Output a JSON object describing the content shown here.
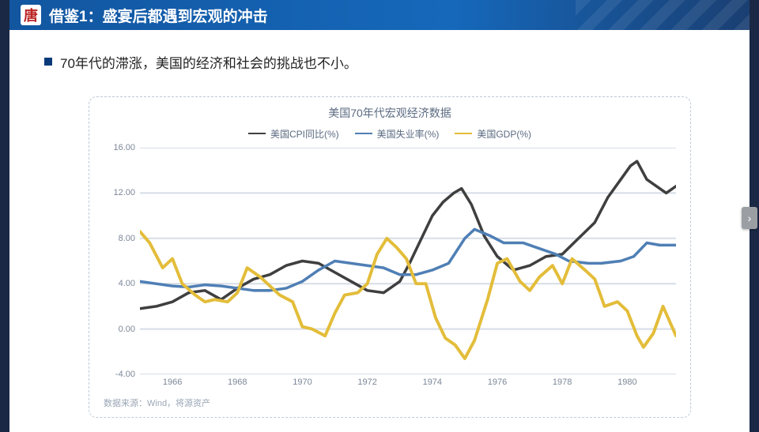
{
  "header": {
    "logo_char": "唐",
    "title": "借鉴1：盛宴后都遇到宏观的冲击",
    "title_fontsize": 19,
    "bar_gradient": [
      "#1256a0",
      "#1668bb",
      "#1a3f72"
    ]
  },
  "bullet": {
    "text": "70年代的滞涨，美国的经济和社会的挑战也不小。",
    "square_color": "#0b3a7a",
    "fontsize": 17
  },
  "chart": {
    "type": "line",
    "title": "美国70年代宏观经济数据",
    "title_color": "#5b6b82",
    "title_fontsize": 14,
    "border_color": "#bfc9d6",
    "background_color": "#ffffff",
    "source": "数据来源：Wind，将源资产",
    "x": {
      "ticks": [
        1966,
        1968,
        1970,
        1972,
        1974,
        1976,
        1978,
        1980
      ],
      "lim": [
        1965,
        1981.5
      ],
      "label_color": "#7b8798",
      "label_fontsize": 11
    },
    "y": {
      "ticks": [
        -4.0,
        0.0,
        4.0,
        8.0,
        12.0,
        16.0
      ],
      "lim": [
        -4,
        16
      ],
      "grid_color": "#d7dde6",
      "grid_width": 1,
      "label_color": "#7b8798",
      "label_fontsize": 11,
      "label_format": "0.00"
    },
    "legend": {
      "position": "top",
      "fontsize": 12,
      "items": [
        {
          "label": "美国CPI同比(%)",
          "color": "#3f3f3f"
        },
        {
          "label": "美国失业率(%)",
          "color": "#4f7fb5"
        },
        {
          "label": "美国GDP(%)",
          "color": "#e3bd3a"
        }
      ]
    },
    "series": [
      {
        "name": "cpi",
        "color": "#3f3f3f",
        "width": 1.6,
        "points": [
          [
            1965.0,
            1.8
          ],
          [
            1965.5,
            2.0
          ],
          [
            1966.0,
            2.4
          ],
          [
            1966.5,
            3.2
          ],
          [
            1967.0,
            3.4
          ],
          [
            1967.5,
            2.6
          ],
          [
            1968.0,
            3.6
          ],
          [
            1968.5,
            4.4
          ],
          [
            1969.0,
            4.8
          ],
          [
            1969.5,
            5.6
          ],
          [
            1970.0,
            6.0
          ],
          [
            1970.5,
            5.8
          ],
          [
            1971.0,
            5.0
          ],
          [
            1971.5,
            4.2
          ],
          [
            1972.0,
            3.4
          ],
          [
            1972.5,
            3.2
          ],
          [
            1973.0,
            4.2
          ],
          [
            1973.3,
            5.8
          ],
          [
            1973.6,
            7.6
          ],
          [
            1974.0,
            10.0
          ],
          [
            1974.33,
            11.2
          ],
          [
            1974.66,
            12.0
          ],
          [
            1974.9,
            12.4
          ],
          [
            1975.2,
            11.0
          ],
          [
            1975.6,
            8.2
          ],
          [
            1976.0,
            6.4
          ],
          [
            1976.5,
            5.2
          ],
          [
            1977.0,
            5.6
          ],
          [
            1977.5,
            6.4
          ],
          [
            1978.0,
            6.6
          ],
          [
            1978.5,
            8.0
          ],
          [
            1979.0,
            9.4
          ],
          [
            1979.4,
            11.6
          ],
          [
            1979.8,
            13.2
          ],
          [
            1980.1,
            14.4
          ],
          [
            1980.3,
            14.8
          ],
          [
            1980.6,
            13.2
          ],
          [
            1980.9,
            12.6
          ],
          [
            1981.2,
            12.0
          ],
          [
            1981.5,
            12.6
          ]
        ]
      },
      {
        "name": "unemployment",
        "color": "#4f7fb5",
        "width": 1.6,
        "points": [
          [
            1965.0,
            4.2
          ],
          [
            1965.5,
            4.0
          ],
          [
            1966.0,
            3.8
          ],
          [
            1966.5,
            3.7
          ],
          [
            1967.0,
            3.9
          ],
          [
            1967.5,
            3.8
          ],
          [
            1968.0,
            3.6
          ],
          [
            1968.5,
            3.4
          ],
          [
            1969.0,
            3.4
          ],
          [
            1969.5,
            3.6
          ],
          [
            1970.0,
            4.2
          ],
          [
            1970.5,
            5.2
          ],
          [
            1971.0,
            6.0
          ],
          [
            1971.5,
            5.8
          ],
          [
            1972.0,
            5.6
          ],
          [
            1972.5,
            5.4
          ],
          [
            1973.0,
            4.8
          ],
          [
            1973.5,
            4.8
          ],
          [
            1974.0,
            5.2
          ],
          [
            1974.5,
            5.8
          ],
          [
            1975.0,
            8.0
          ],
          [
            1975.3,
            8.8
          ],
          [
            1975.8,
            8.2
          ],
          [
            1976.2,
            7.6
          ],
          [
            1976.8,
            7.6
          ],
          [
            1977.2,
            7.2
          ],
          [
            1977.8,
            6.6
          ],
          [
            1978.2,
            6.0
          ],
          [
            1978.8,
            5.8
          ],
          [
            1979.2,
            5.8
          ],
          [
            1979.8,
            6.0
          ],
          [
            1980.2,
            6.4
          ],
          [
            1980.6,
            7.6
          ],
          [
            1981.0,
            7.4
          ],
          [
            1981.5,
            7.4
          ]
        ]
      },
      {
        "name": "gdp",
        "color": "#e3bd3a",
        "width": 1.8,
        "points": [
          [
            1965.0,
            8.6
          ],
          [
            1965.3,
            7.6
          ],
          [
            1965.7,
            5.4
          ],
          [
            1966.0,
            6.2
          ],
          [
            1966.3,
            4.0
          ],
          [
            1966.7,
            3.0
          ],
          [
            1967.0,
            2.4
          ],
          [
            1967.3,
            2.6
          ],
          [
            1967.7,
            2.4
          ],
          [
            1968.0,
            3.2
          ],
          [
            1968.3,
            5.4
          ],
          [
            1968.7,
            4.6
          ],
          [
            1969.0,
            3.8
          ],
          [
            1969.3,
            3.0
          ],
          [
            1969.7,
            2.4
          ],
          [
            1970.0,
            0.2
          ],
          [
            1970.3,
            0.0
          ],
          [
            1970.7,
            -0.6
          ],
          [
            1971.0,
            1.4
          ],
          [
            1971.3,
            3.0
          ],
          [
            1971.7,
            3.2
          ],
          [
            1972.0,
            4.0
          ],
          [
            1972.3,
            6.6
          ],
          [
            1972.6,
            8.0
          ],
          [
            1972.9,
            7.2
          ],
          [
            1973.2,
            6.2
          ],
          [
            1973.5,
            4.0
          ],
          [
            1973.8,
            4.0
          ],
          [
            1974.1,
            1.0
          ],
          [
            1974.4,
            -0.8
          ],
          [
            1974.7,
            -1.4
          ],
          [
            1975.0,
            -2.6
          ],
          [
            1975.3,
            -1.0
          ],
          [
            1975.7,
            2.6
          ],
          [
            1976.0,
            5.8
          ],
          [
            1976.3,
            6.2
          ],
          [
            1976.7,
            4.2
          ],
          [
            1977.0,
            3.4
          ],
          [
            1977.3,
            4.6
          ],
          [
            1977.7,
            5.6
          ],
          [
            1978.0,
            4.0
          ],
          [
            1978.3,
            6.2
          ],
          [
            1978.7,
            5.2
          ],
          [
            1979.0,
            4.4
          ],
          [
            1979.3,
            2.0
          ],
          [
            1979.7,
            2.4
          ],
          [
            1980.0,
            1.6
          ],
          [
            1980.3,
            -0.6
          ],
          [
            1980.5,
            -1.6
          ],
          [
            1980.8,
            -0.4
          ],
          [
            1981.1,
            2.0
          ],
          [
            1981.5,
            -0.6
          ]
        ]
      }
    ]
  },
  "nav": {
    "next_glyph": "›"
  }
}
